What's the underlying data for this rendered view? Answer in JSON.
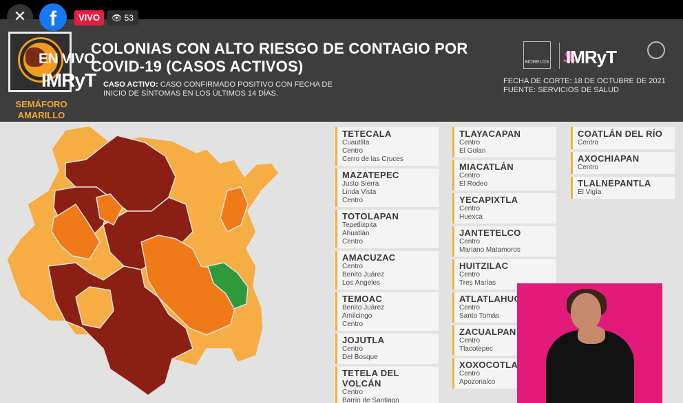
{
  "live_bar": {
    "close_icon": "close-icon",
    "logo": "facebook-logo",
    "live_label": "VIVO",
    "viewer_icon": "eye-icon",
    "viewer_count": "53"
  },
  "header": {
    "semaforo_line1": "SEMÁFORO",
    "semaforo_line2": "AMARILLO",
    "en_vivo": "EN VIVO",
    "overlay_brand": "IMRyT",
    "title_line1": "COLONIAS CON ALTO RIESGO DE CONTAGIO POR",
    "title_line2": "COVID-19 (CASOS ACTIVOS)",
    "subtitle_bold": "CASO ACTIVO:",
    "subtitle_line1": "CASO CONFIRMADO POSITIVO CON FECHA DE",
    "subtitle_line2": "INICIO DE SÍNTOMAS EN LOS ÚLTIMOS 14 DÍAS.",
    "logo_brand": "IMRyT",
    "logo_state": "MORELOS",
    "fecha_line": "FECHA DE CORTE: 18 DE OCTUBRE DE 2021",
    "fuente_line": "FUENTE: SERVICIOS DE SALUD"
  },
  "colors": {
    "dark_red": "#8b1f14",
    "orange": "#f07a17",
    "light_orange": "#f6ad43",
    "green": "#2e9a3b",
    "accent": "#efb23a"
  },
  "columns": [
    [
      {
        "name": "TETECALA",
        "items": [
          "Cuautlita",
          "Centro",
          "Cerro de las Cruces"
        ]
      },
      {
        "name": "MAZATEPEC",
        "items": [
          "Justo Sierra",
          "Linda Vista",
          "Centro"
        ]
      },
      {
        "name": "TOTOLAPAN",
        "items": [
          "Tepetlixpita",
          "Ahuatlán",
          "Centro"
        ]
      },
      {
        "name": "AMACUZAC",
        "items": [
          "Centro",
          "Benito Juárez",
          "Los Ángeles"
        ]
      },
      {
        "name": "TEMOAC",
        "items": [
          "Benito Juárez",
          "Amilcingo",
          "Centro"
        ]
      },
      {
        "name": "JOJUTLA",
        "items": [
          "Centro",
          "Del Bosque"
        ]
      },
      {
        "name": "TETELA DEL VOLCÁN",
        "items": [
          "Centro",
          "Barrio de Santiago"
        ]
      }
    ],
    [
      {
        "name": "TLAYACAPAN",
        "items": [
          "Centro",
          "El Golan"
        ]
      },
      {
        "name": "MIACATLÁN",
        "items": [
          "Centro",
          "El Rodeo"
        ]
      },
      {
        "name": "YECAPIXTLA",
        "items": [
          "Centro",
          "Huexca"
        ]
      },
      {
        "name": "JANTETELCO",
        "items": [
          "Centro",
          "Mariano Matamoros"
        ]
      },
      {
        "name": "HUITZILAC",
        "items": [
          "Centro",
          "Tres Marías"
        ]
      },
      {
        "name": "ATLATLAHUCAN",
        "items": [
          "Centro",
          "Santo Tomás"
        ]
      },
      {
        "name": "ZACUALPAN",
        "items": [
          "Centro",
          "Tlacotepec"
        ]
      },
      {
        "name": "XOXOCOTLA",
        "items": [
          "Centro",
          "Apozonalco"
        ]
      }
    ],
    [
      {
        "name": "COATLÁN DEL RÍO",
        "items": [
          "Centro"
        ]
      },
      {
        "name": "AXOCHIAPAN",
        "items": [
          "Centro"
        ]
      },
      {
        "name": "TLALNEPANTLA",
        "items": [
          "El Vigía"
        ]
      }
    ]
  ]
}
